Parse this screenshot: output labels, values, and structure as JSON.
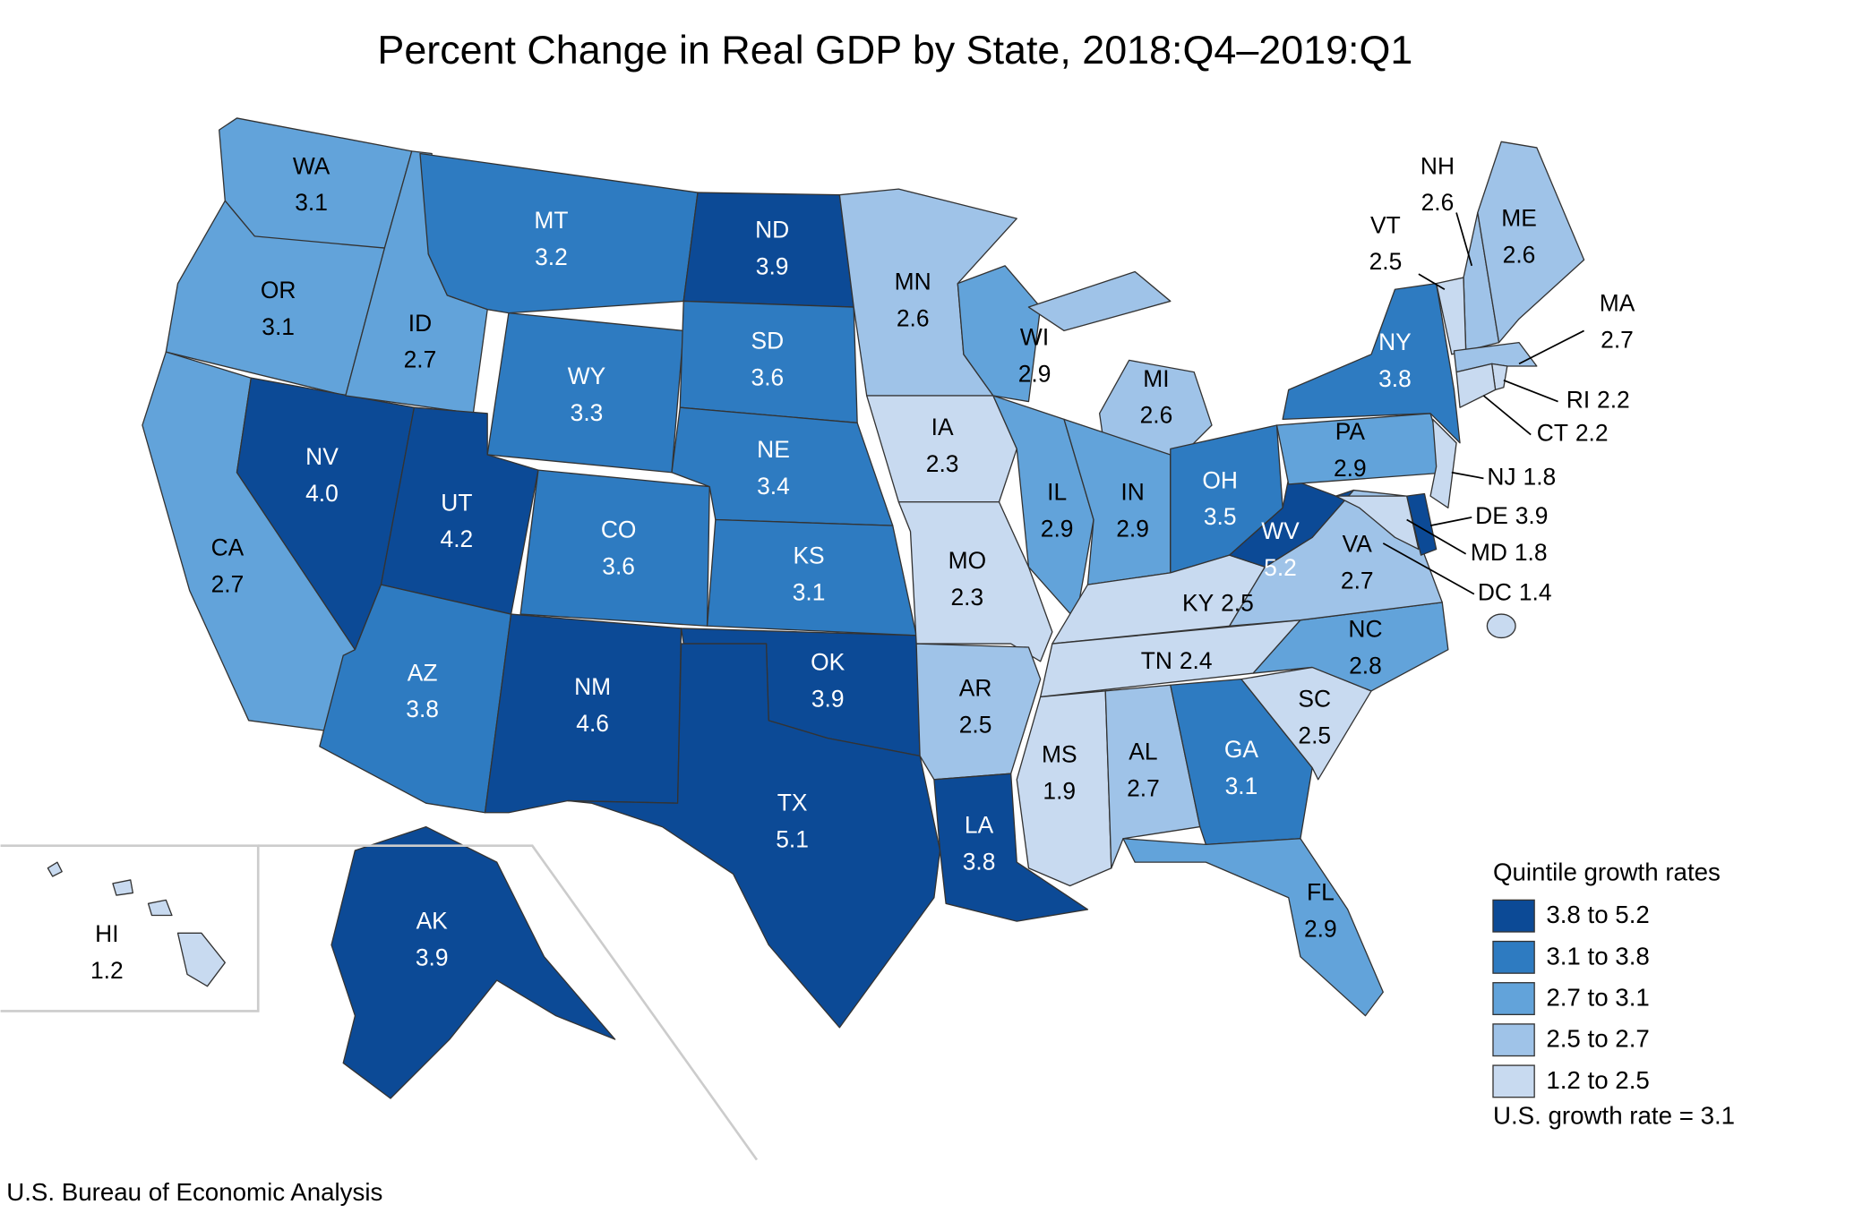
{
  "title": "Percent Change in Real GDP by State, 2018:Q4–2019:Q1",
  "states": [
    {
      "name": "WA",
      "value": 3.1,
      "color": "#62a3da"
    },
    {
      "name": "OR",
      "value": 3.1,
      "color": "#62a3da"
    },
    {
      "name": "CA",
      "value": 2.7,
      "color": "#62a3da"
    },
    {
      "name": "NV",
      "value": 4.0,
      "value_label": "4.0",
      "color": "#0c4a96"
    },
    {
      "name": "ID",
      "value": 2.7,
      "color": "#62a3da"
    },
    {
      "name": "MT",
      "value": 3.2,
      "color": "#2e7bc1"
    },
    {
      "name": "WY",
      "value": 3.3,
      "color": "#2e7bc1"
    },
    {
      "name": "UT",
      "value": 4.2,
      "color": "#0c4a96"
    },
    {
      "name": "AZ",
      "value": 3.8,
      "color": "#2e7bc1"
    },
    {
      "name": "CO",
      "value": 3.6,
      "color": "#2e7bc1"
    },
    {
      "name": "NM",
      "value": 4.6,
      "color": "#0c4a96"
    },
    {
      "name": "ND",
      "value": 3.9,
      "color": "#0c4a96"
    },
    {
      "name": "SD",
      "value": 3.6,
      "color": "#2e7bc1"
    },
    {
      "name": "NE",
      "value": 3.4,
      "color": "#2e7bc1"
    },
    {
      "name": "KS",
      "value": 3.1,
      "color": "#2e7bc1"
    },
    {
      "name": "OK",
      "value": 3.9,
      "color": "#0c4a96"
    },
    {
      "name": "TX",
      "value": 5.1,
      "color": "#0c4a96"
    },
    {
      "name": "MN",
      "value": 2.6,
      "color": "#9fc3e8"
    },
    {
      "name": "IA",
      "value": 2.3,
      "color": "#c8daf0"
    },
    {
      "name": "MO",
      "value": 2.3,
      "color": "#c8daf0"
    },
    {
      "name": "AR",
      "value": 2.5,
      "color": "#9fc3e8"
    },
    {
      "name": "LA",
      "value": 3.8,
      "color": "#0c4a96"
    },
    {
      "name": "WI",
      "value": 2.9,
      "color": "#62a3da"
    },
    {
      "name": "IL",
      "value": 2.9,
      "color": "#62a3da"
    },
    {
      "name": "MI",
      "value": 2.6,
      "color": "#9fc3e8"
    },
    {
      "name": "IN",
      "value": 2.9,
      "color": "#62a3da"
    },
    {
      "name": "OH",
      "value": 3.5,
      "color": "#2e7bc1"
    },
    {
      "name": "KY",
      "value": 2.5,
      "color": "#c8daf0"
    },
    {
      "name": "TN",
      "value": 2.4,
      "color": "#c8daf0"
    },
    {
      "name": "MS",
      "value": 1.9,
      "color": "#c8daf0"
    },
    {
      "name": "AL",
      "value": 2.7,
      "color": "#9fc3e8"
    },
    {
      "name": "GA",
      "value": 3.1,
      "color": "#2e7bc1"
    },
    {
      "name": "FL",
      "value": 2.9,
      "color": "#62a3da"
    },
    {
      "name": "SC",
      "value": 2.5,
      "color": "#c8daf0"
    },
    {
      "name": "NC",
      "value": 2.8,
      "color": "#62a3da"
    },
    {
      "name": "VA",
      "value": 2.7,
      "color": "#9fc3e8"
    },
    {
      "name": "WV",
      "value": 5.2,
      "color": "#0c4a96"
    },
    {
      "name": "PA",
      "value": 2.9,
      "color": "#62a3da"
    },
    {
      "name": "NY",
      "value": 3.8,
      "color": "#2e7bc1"
    },
    {
      "name": "NH",
      "value": 2.6,
      "color": "#9fc3e8"
    },
    {
      "name": "VT",
      "value": 2.5,
      "color": "#c8daf0"
    },
    {
      "name": "ME",
      "value": 2.6,
      "color": "#9fc3e8"
    },
    {
      "name": "MA",
      "value": 2.7,
      "color": "#9fc3e8"
    },
    {
      "name": "RI",
      "value": 2.2,
      "color": "#c8daf0"
    },
    {
      "name": "CT",
      "value": 2.2,
      "color": "#c8daf0"
    },
    {
      "name": "NJ",
      "value": 1.8,
      "color": "#c8daf0"
    },
    {
      "name": "DE",
      "value": 3.9,
      "color": "#0c4a96"
    },
    {
      "name": "MD",
      "value": 1.8,
      "color": "#c8daf0"
    },
    {
      "name": "DC",
      "value": 1.4,
      "color": "#c8daf0"
    },
    {
      "name": "AK",
      "value": 3.9,
      "color": "#0c4a96"
    },
    {
      "name": "HI",
      "value": 1.2,
      "color": "#c8daf0"
    }
  ],
  "legend": {
    "title": "Quintile growth rates",
    "items": [
      {
        "label": "3.8 to 5.2",
        "color": "#0c4a96"
      },
      {
        "label": "3.1 to 3.8",
        "color": "#2e7bc1"
      },
      {
        "label": "2.7 to 3.1",
        "color": "#62a3da"
      },
      {
        "label": "2.5 to 2.7",
        "color": "#9fc3e8"
      },
      {
        "label": "1.2 to 2.5",
        "color": "#c8daf0"
      }
    ]
  },
  "note": "U.S. growth rate = 3.1",
  "source": "U.S. Bureau of Economic Analysis"
}
